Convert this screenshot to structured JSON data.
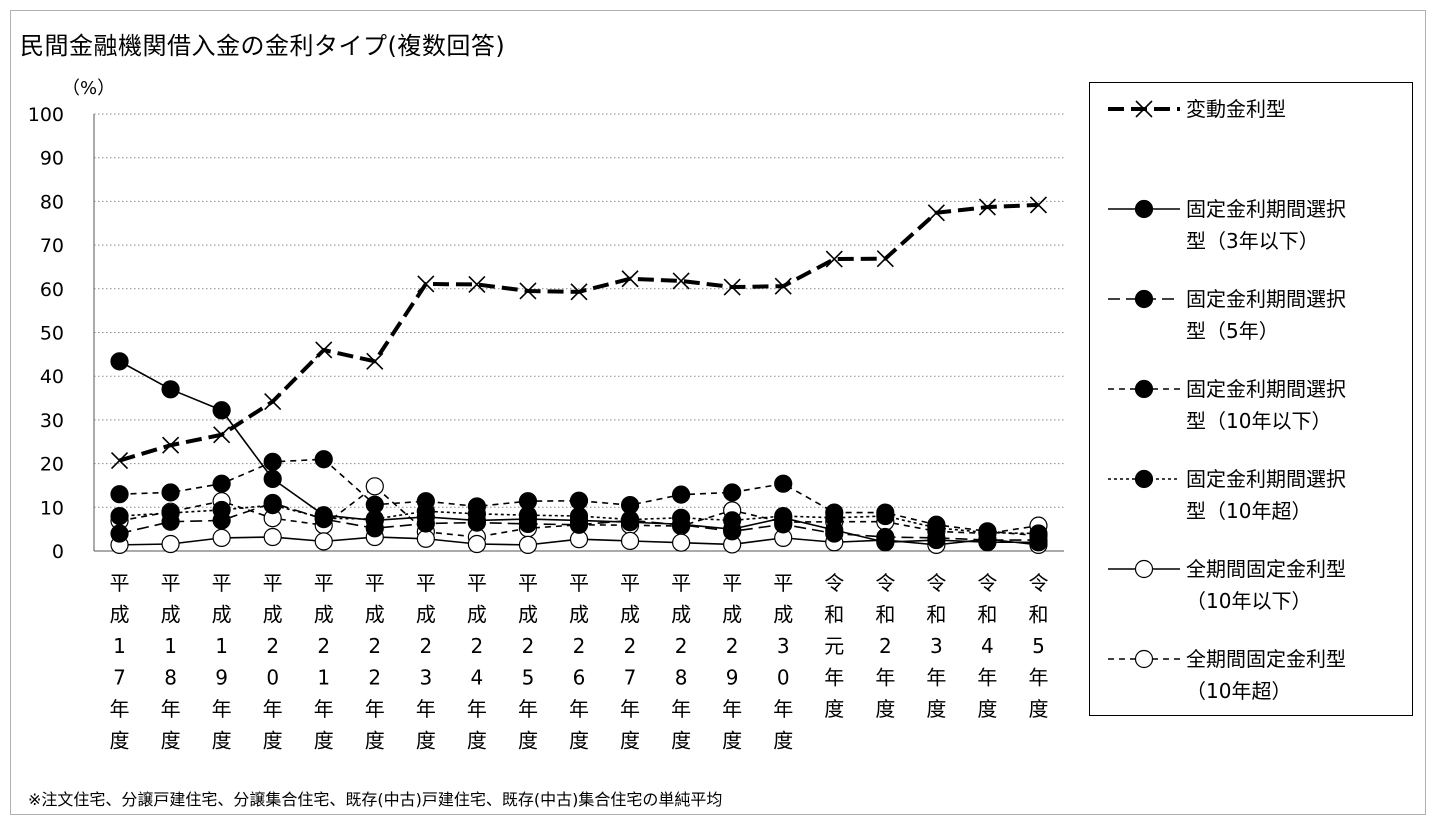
{
  "chart_data": {
    "type": "line",
    "title": "民間金融機関借入金の金利タイプ(複数回答)",
    "ylabel": "（%）",
    "ylim": [
      0,
      100
    ],
    "yticks": [
      0,
      10,
      20,
      30,
      40,
      50,
      60,
      70,
      80,
      90,
      100
    ],
    "grid": true,
    "legend_position": "right",
    "categories": [
      "平成17年度",
      "平成18年度",
      "平成19年度",
      "平成20年度",
      "平成21年度",
      "平成22年度",
      "平成23年度",
      "平成24年度",
      "平成25年度",
      "平成26年度",
      "平成27年度",
      "平成28年度",
      "平成29年度",
      "平成30年度",
      "令和元年度",
      "令和2年度",
      "令和3年度",
      "令和4年度",
      "令和5年度"
    ],
    "category_labels": [
      "平成17年度",
      "平成18年度",
      "平成19年度",
      "平成20年度",
      "平成21年度",
      "平成22年度",
      "平成23年度",
      "平成24年度",
      "平成25年度",
      "平成26年度",
      "平成27年度",
      "平成28年度",
      "平成29年度",
      "平成30年度",
      "令和元年度",
      "令和2年度",
      "令和3年度",
      "令和4年度",
      "令和5年度"
    ],
    "series": [
      {
        "name": "変動金利型",
        "marker": "x",
        "line": "dash-thick",
        "values": [
          20.7,
          24.2,
          26.6,
          34.2,
          46.0,
          43.4,
          61.1,
          61.0,
          59.5,
          59.3,
          62.3,
          61.8,
          60.4,
          60.6,
          66.8,
          66.9,
          77.4,
          78.7,
          79.2
        ]
      },
      {
        "name": "固定金利期間選択型（3年以下）",
        "marker": "filled-circle",
        "line": "solid",
        "values": [
          43.4,
          37.0,
          32.2,
          16.5,
          8.2,
          7.0,
          7.8,
          7.0,
          7.3,
          7.0,
          6.6,
          6.1,
          5.0,
          7.6,
          4.8,
          2.0,
          2.5,
          2.0,
          2.0
        ]
      },
      {
        "name": "固定金利期間選択型（5年）",
        "marker": "filled-circle",
        "line": "dash",
        "values": [
          4.0,
          6.7,
          7.0,
          11.0,
          7.3,
          5.2,
          6.3,
          6.5,
          6.2,
          6.0,
          7.0,
          6.0,
          4.5,
          6.1,
          4.0,
          3.2,
          3.0,
          2.5,
          2.5
        ]
      },
      {
        "name": "固定金利期間選択型（10年以下）",
        "marker": "filled-circle",
        "line": "short-dash",
        "values": [
          13.0,
          13.4,
          15.4,
          20.4,
          21.0,
          10.6,
          11.4,
          10.2,
          11.4,
          11.5,
          10.5,
          12.9,
          13.4,
          15.4,
          8.8,
          8.8,
          6.0,
          4.5,
          3.5
        ]
      },
      {
        "name": "固定金利期間選択型（10年超）",
        "marker": "filled-circle",
        "line": "dot",
        "values": [
          8.0,
          8.7,
          9.4,
          10.5,
          7.5,
          7.3,
          9.1,
          8.5,
          8.2,
          8.0,
          7.2,
          7.6,
          7.0,
          8.0,
          7.6,
          8.0,
          5.3,
          4.2,
          4.0
        ]
      },
      {
        "name": "全期間固定金利型（10年以下）",
        "marker": "open-circle",
        "line": "solid",
        "values": [
          1.4,
          1.6,
          3.0,
          3.2,
          2.2,
          3.2,
          2.8,
          1.6,
          1.4,
          2.7,
          2.3,
          1.9,
          1.5,
          3.0,
          2.0,
          2.5,
          1.4,
          2.7,
          1.4
        ]
      },
      {
        "name": "全期間固定金利型（10年超）",
        "marker": "open-circle",
        "line": "short-dash",
        "values": [
          6.9,
          9.0,
          11.4,
          7.5,
          5.9,
          14.8,
          4.4,
          3.2,
          5.2,
          6.0,
          5.9,
          5.7,
          9.3,
          6.6,
          6.7,
          6.7,
          4.5,
          4.0,
          5.8
        ]
      }
    ],
    "legend": [
      {
        "line1": "変動金利型",
        "line2": ""
      },
      {
        "line1": "固定金利期間選択",
        "line2": "型（3年以下）"
      },
      {
        "line1": "固定金利期間選択",
        "line2": "型（5年）"
      },
      {
        "line1": "固定金利期間選択",
        "line2": "型（10年以下）"
      },
      {
        "line1": "固定金利期間選択",
        "line2": "型（10年超）"
      },
      {
        "line1": "全期間固定金利型",
        "line2": "（10年以下）"
      },
      {
        "line1": "全期間固定金利型",
        "line2": "（10年超）"
      }
    ]
  },
  "footnote": "※注文住宅、分譲戸建住宅、分譲集合住宅、既存(中古)戸建住宅、既存(中古)集合住宅の単純平均"
}
